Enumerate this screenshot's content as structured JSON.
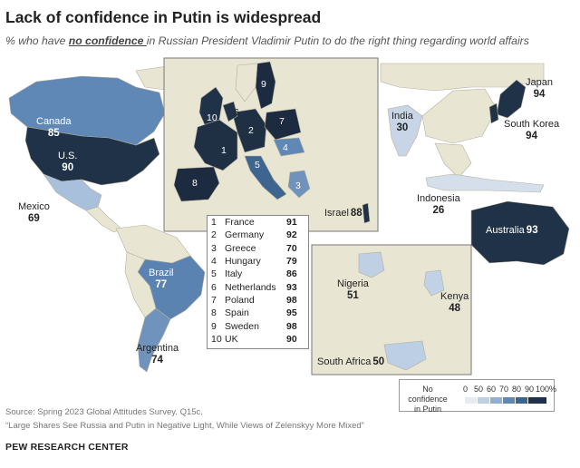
{
  "header": {
    "title": "Lack of confidence in Putin is widespread",
    "subtitle_pre": "% who have ",
    "subtitle_emph": "no confidence ",
    "subtitle_post": "in Russian President Vladimir Putin to do the right thing regarding world affairs"
  },
  "countries": {
    "canada": {
      "name": "Canada",
      "value": 85
    },
    "us": {
      "name": "U.S.",
      "value": 90
    },
    "mexico": {
      "name": "Mexico",
      "value": 69
    },
    "brazil": {
      "name": "Brazil",
      "value": 77
    },
    "argentina": {
      "name": "Argentina",
      "value": 74
    },
    "india": {
      "name": "India",
      "value": 30
    },
    "japan": {
      "name": "Japan",
      "value": 94
    },
    "south_korea": {
      "name": "South Korea",
      "value": 94
    },
    "indonesia": {
      "name": "Indonesia",
      "value": 26
    },
    "australia": {
      "name": "Australia",
      "value": 93
    },
    "israel": {
      "name": "Israel",
      "value": 88
    },
    "nigeria": {
      "name": "Nigeria",
      "value": 51
    },
    "kenya": {
      "name": "Kenya",
      "value": 48
    },
    "south_africa": {
      "name": "South Africa",
      "value": 50
    }
  },
  "europe_table": [
    {
      "num": "1",
      "country": "France",
      "value": 91
    },
    {
      "num": "2",
      "country": "Germany",
      "value": 92
    },
    {
      "num": "3",
      "country": "Greece",
      "value": 70
    },
    {
      "num": "4",
      "country": "Hungary",
      "value": 79
    },
    {
      "num": "5",
      "country": "Italy",
      "value": 86
    },
    {
      "num": "6",
      "country": "Netherlands",
      "value": 93
    },
    {
      "num": "7",
      "country": "Poland",
      "value": 98
    },
    {
      "num": "8",
      "country": "Spain",
      "value": 95
    },
    {
      "num": "9",
      "country": "Sweden",
      "value": 98
    },
    {
      "num": "10",
      "country": "UK",
      "value": 90
    }
  ],
  "legend": {
    "title": "No confidence in Putin",
    "ticks": [
      "0",
      "50",
      "60",
      "70",
      "80",
      "90",
      "100%"
    ],
    "colors": [
      "#e6ebf1",
      "#bfd0e4",
      "#8fb0d2",
      "#5f88b6",
      "#3d6590",
      "#203247"
    ]
  },
  "colors": {
    "land": "#e8e5d3",
    "border": "#b7b3a0",
    "ocean": "#ffffff"
  },
  "footer": {
    "source": "Source: Spring 2023 Global Attitudes Survey. Q15c.",
    "report": "“Large Shares See Russia and Putin in Negative Light, While Views of Zelenskyy More Mixed”",
    "brand": "PEW RESEARCH CENTER"
  }
}
